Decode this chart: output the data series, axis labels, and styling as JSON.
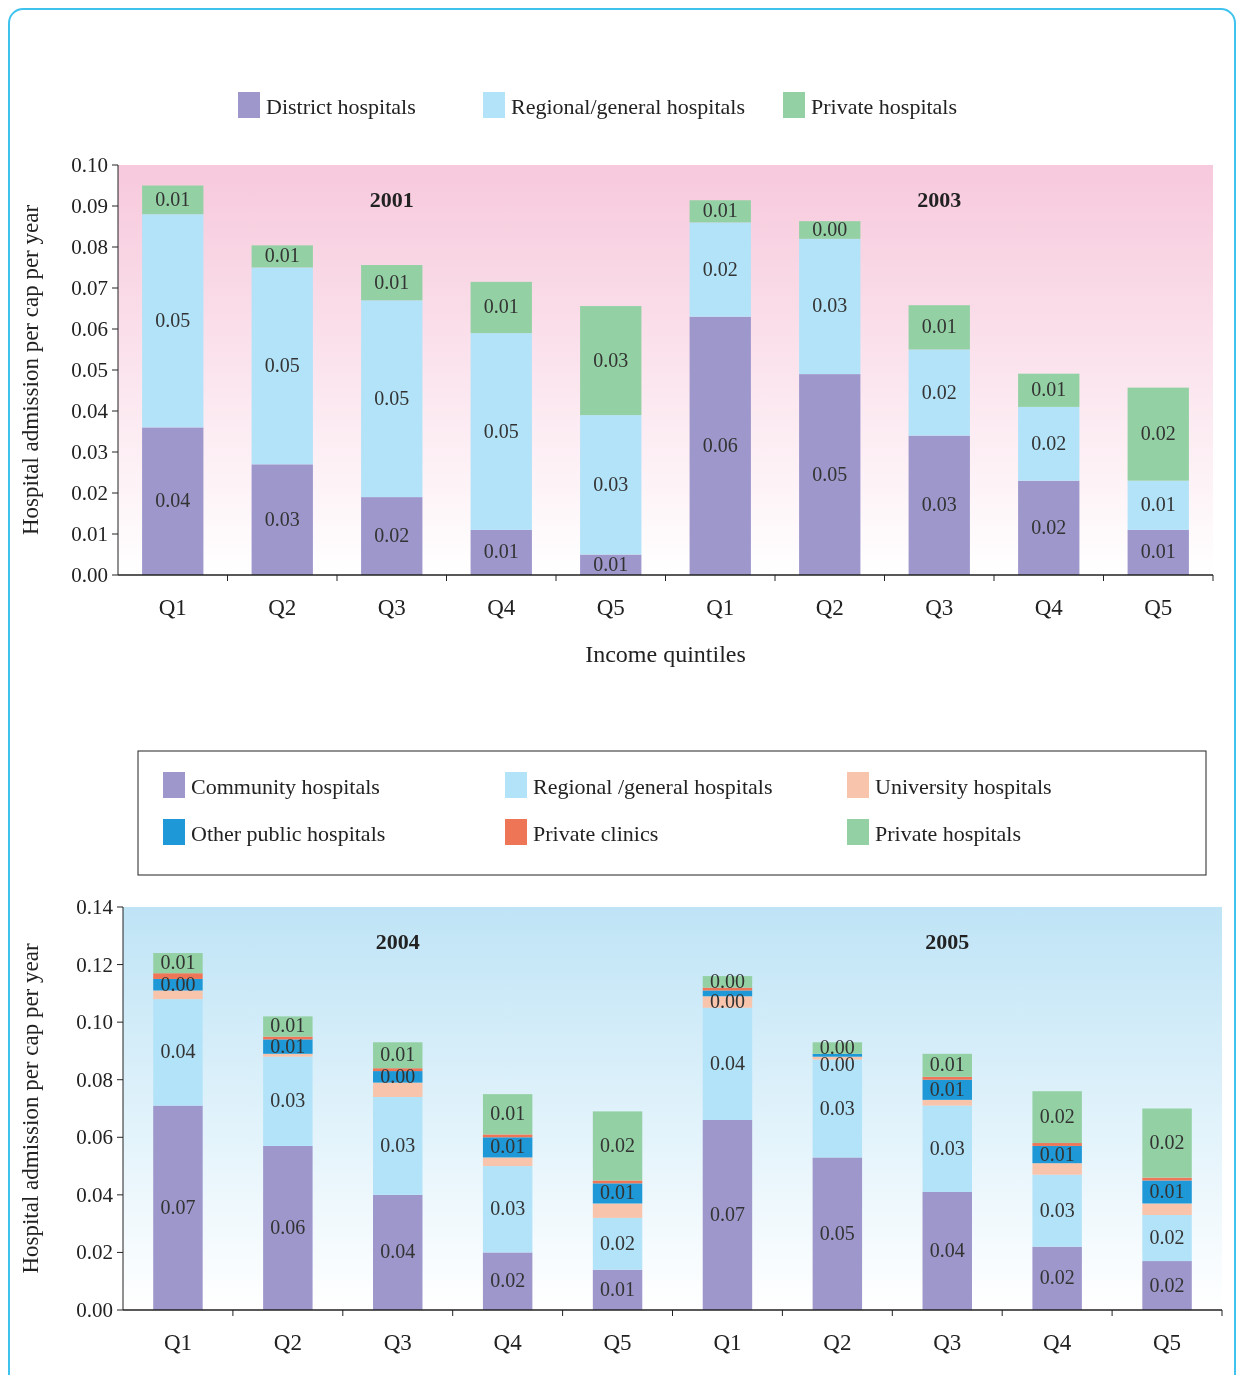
{
  "chart_data": [
    {
      "type": "bar",
      "stacked": true,
      "legend": "top",
      "grid": false,
      "ylabel": "Hospital admission per cap per year",
      "xlabel": "Income quintiles",
      "annotations": [
        "2001",
        "2003"
      ],
      "categories": [
        "Q1",
        "Q2",
        "Q3",
        "Q4",
        "Q5",
        "Q1",
        "Q2",
        "Q3",
        "Q4",
        "Q5"
      ],
      "ylim": [
        0,
        0.1
      ],
      "yticks": [
        {
          "value": 0,
          "label": "0.00"
        },
        {
          "value": 0.01,
          "label": "0.01"
        },
        {
          "value": 0.02,
          "label": "0.02"
        },
        {
          "value": 0.03,
          "label": "0.03"
        },
        {
          "value": 0.04,
          "label": "0.04"
        },
        {
          "value": 0.05,
          "label": "0.05"
        },
        {
          "value": 0.06,
          "label": "0.06"
        },
        {
          "value": 0.07,
          "label": "0.07"
        },
        {
          "value": 0.08,
          "label": "0.08"
        },
        {
          "value": 0.09,
          "label": "0.09"
        },
        {
          "value": 0.1,
          "label": "0.10"
        }
      ],
      "series": [
        {
          "name": "District hospitals",
          "color": "#9d97cb",
          "values": [
            0.036,
            0.027,
            0.019,
            0.011,
            0.005,
            0.063,
            0.049,
            0.034,
            0.023,
            0.011
          ],
          "value_labels": [
            "0.04",
            "0.03",
            "0.02",
            "0.01",
            "0.01",
            "0.06",
            "0.05",
            "0.03",
            "0.02",
            "0.01"
          ]
        },
        {
          "name": "Regional/general hospitals",
          "color": "#b3e3f8",
          "values": [
            0.052,
            0.048,
            0.048,
            0.048,
            0.034,
            0.023,
            0.033,
            0.021,
            0.018,
            0.012
          ],
          "value_labels": [
            "0.05",
            "0.05",
            "0.05",
            "0.05",
            "0.03",
            "0.02",
            "0.03",
            "0.02",
            "0.02",
            "0.01"
          ]
        },
        {
          "name": "Private hospitals",
          "color": "#93d1a4",
          "values": [
            0.007,
            0.0054,
            0.0086,
            0.0125,
            0.0266,
            0.0054,
            0.0043,
            0.0108,
            0.0081,
            0.0227
          ],
          "value_labels": [
            "0.01",
            "0.01",
            "0.01",
            "0.01",
            "0.03",
            "0.01",
            "0.00",
            "0.01",
            "0.01",
            "0.02"
          ]
        }
      ]
    },
    {
      "type": "bar",
      "stacked": true,
      "legend": "top",
      "grid": false,
      "ylabel": "Hospital admission per cap per year",
      "annotations": [
        "2004",
        "2005"
      ],
      "categories": [
        "Q1",
        "Q2",
        "Q3",
        "Q4",
        "Q5",
        "Q1",
        "Q2",
        "Q3",
        "Q4",
        "Q5"
      ],
      "ylim": [
        0,
        0.14
      ],
      "yticks": [
        {
          "value": 0,
          "label": "0.00"
        },
        {
          "value": 0.02,
          "label": "0.02"
        },
        {
          "value": 0.04,
          "label": "0.04"
        },
        {
          "value": 0.06,
          "label": "0.06"
        },
        {
          "value": 0.08,
          "label": "0.08"
        },
        {
          "value": 0.1,
          "label": "0.10"
        },
        {
          "value": 0.12,
          "label": "0.12"
        },
        {
          "value": 0.14,
          "label": "0.14"
        }
      ],
      "series": [
        {
          "name": "Community hospitals",
          "color": "#9d97cb",
          "values": [
            0.071,
            0.057,
            0.04,
            0.02,
            0.014,
            0.066,
            0.053,
            0.041,
            0.022,
            0.017
          ],
          "value_labels": [
            "0.07",
            "0.06",
            "0.04",
            "0.02",
            "0.01",
            "0.07",
            "0.05",
            "0.04",
            "0.02",
            "0.02"
          ]
        },
        {
          "name": "Regional /general hospitals",
          "color": "#b3e3f8",
          "values": [
            0.037,
            0.031,
            0.034,
            0.03,
            0.018,
            0.039,
            0.034,
            0.03,
            0.025,
            0.016
          ],
          "value_labels": [
            "0.04",
            "0.03",
            "0.03",
            "0.03",
            "0.02",
            "0.04",
            "0.03",
            "0.03",
            "0.03",
            "0.02"
          ]
        },
        {
          "name": "University hospitals",
          "color": "#f8c4ac",
          "values": [
            0.003,
            0.001,
            0.005,
            0.003,
            0.005,
            0.004,
            0.001,
            0.002,
            0.004,
            0.004
          ],
          "value_labels": [
            null,
            null,
            null,
            null,
            null,
            "0.00",
            null,
            null,
            null,
            null
          ]
        },
        {
          "name": "Other public hospitals",
          "color": "#1e98d6",
          "values": [
            0.004,
            0.005,
            0.004,
            0.007,
            0.007,
            0.002,
            0.001,
            0.007,
            0.006,
            0.008
          ],
          "value_labels": [
            "0.00",
            "0.01",
            "0.00",
            "0.01",
            "0.01",
            null,
            "0.00",
            "0.01",
            "0.01",
            "0.01"
          ]
        },
        {
          "name": "Private clinics",
          "color": "#ee7656",
          "values": [
            0.002,
            0.001,
            0.001,
            0.001,
            0.001,
            0.001,
            0,
            0.001,
            0.001,
            0.001
          ],
          "value_labels": [
            null,
            null,
            null,
            null,
            null,
            null,
            null,
            null,
            null,
            null
          ]
        },
        {
          "name": "Private hospitals",
          "color": "#93d1a4",
          "values": [
            0.007,
            0.007,
            0.009,
            0.014,
            0.024,
            0.004,
            0.004,
            0.008,
            0.018,
            0.024
          ],
          "value_labels": [
            "0.01",
            "0.01",
            "0.01",
            "0.01",
            "0.02",
            "0.00",
            "0.00",
            "0.01",
            "0.02",
            "0.02"
          ]
        }
      ]
    }
  ]
}
